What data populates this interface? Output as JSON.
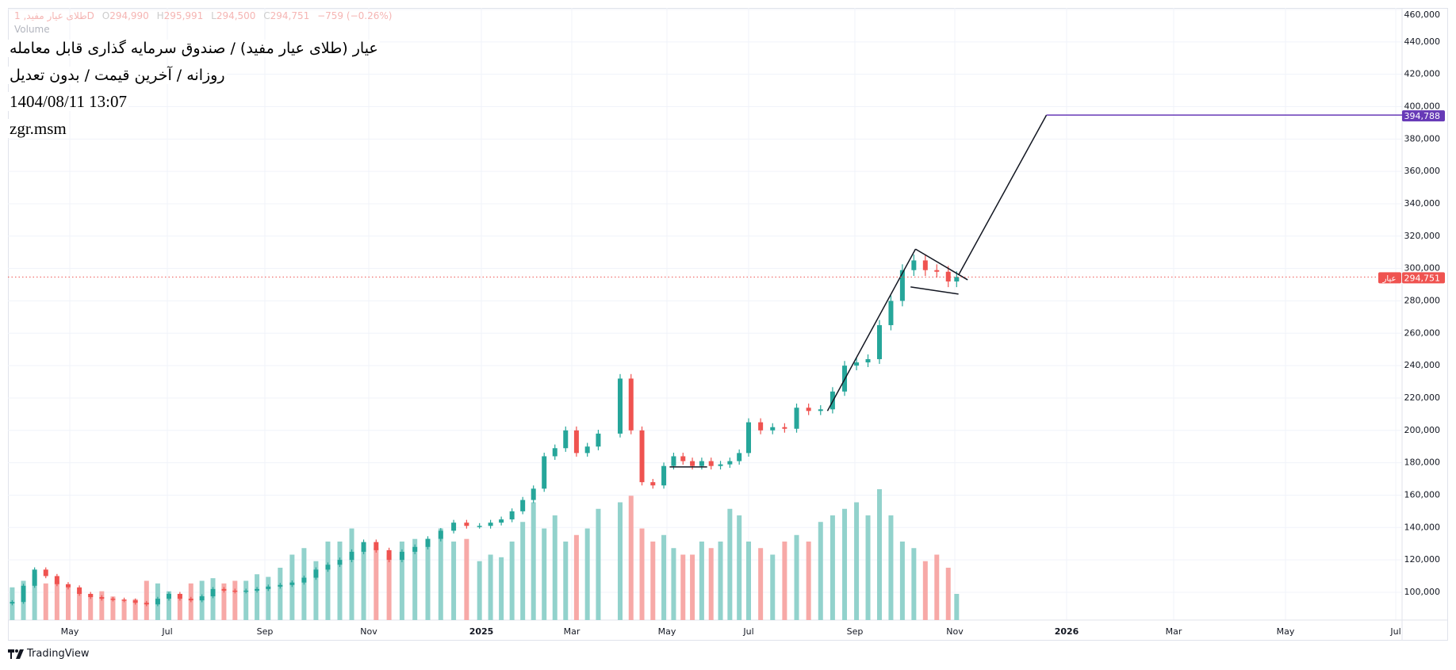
{
  "header": {
    "legend": {
      "symbol": "طلای عیار مفید, 1D",
      "open_label": "O",
      "open": "294,990",
      "high_label": "H",
      "high": "295,991",
      "low_label": "L",
      "low": "294,500",
      "close_label": "C",
      "close": "294,751",
      "change": "−759 (−0.26%)",
      "volume_label": "Volume"
    },
    "title": "عیار (طلای عیار مفید) / صندوق سرمایه گذاری قابل معامله",
    "subtitle": "روزانه / آخرین قیمت / بدون تعدیل",
    "datetime": "1404/08/11 13:07",
    "author": "zgr.msm"
  },
  "branding": {
    "logo_text": "TradingView"
  },
  "colors": {
    "up": "#26a69a",
    "down": "#ef5350",
    "up_volume": "#92d2cc",
    "down_volume": "#f7a9a7",
    "target": "#673ab7",
    "last_price": "#ef5350",
    "grid": "#f0f3fa"
  },
  "chart_data": {
    "type": "candlestick",
    "title": "",
    "grid": true,
    "y_axis": {
      "position": "right",
      "range": [
        86000,
        460000
      ],
      "ticks": [
        "460,000",
        "440,000",
        "420,000",
        "400,000",
        "380,000",
        "360,000",
        "340,000",
        "320,000",
        "300,000",
        "280,000",
        "260,000",
        "240,000",
        "220,000",
        "200,000",
        "180,000",
        "160,000",
        "140,000",
        "120,000",
        "100,000"
      ]
    },
    "x_axis": {
      "ticks": [
        {
          "label": "May",
          "date": "2024-05-01"
        },
        {
          "label": "Jul",
          "date": "2024-07-01"
        },
        {
          "label": "Sep",
          "date": "2024-09-01"
        },
        {
          "label": "Nov",
          "date": "2024-11-01"
        },
        {
          "label": "2025",
          "date": "2025-01-01"
        },
        {
          "label": "Mar",
          "date": "2025-03-01"
        },
        {
          "label": "May",
          "date": "2025-05-01"
        },
        {
          "label": "Jul",
          "date": "2025-07-01"
        },
        {
          "label": "Sep",
          "date": "2025-09-01"
        },
        {
          "label": "Nov",
          "date": "2025-11-01"
        },
        {
          "label": "2026",
          "date": "2026-01-01"
        },
        {
          "label": "Mar",
          "date": "2026-03-01"
        },
        {
          "label": "May",
          "date": "2026-05-01"
        },
        {
          "label": "Jul",
          "date": "2026-07-01"
        }
      ]
    },
    "last_price": {
      "symbol_tag": "عیار",
      "value": 294751,
      "label": "294,751"
    },
    "target": {
      "value": 394788,
      "label": "394,788"
    },
    "candles": [
      {
        "date": "2024-03-26",
        "close": 94000,
        "vol": 0.25
      },
      {
        "date": "2024-04-02",
        "close": 104000,
        "vol": 0.3
      },
      {
        "date": "2024-04-09",
        "close": 114000,
        "vol": 0.35
      },
      {
        "date": "2024-04-16",
        "close": 110000,
        "vol": 0.28
      },
      {
        "date": "2024-04-23",
        "close": 105000,
        "vol": 0.3
      },
      {
        "date": "2024-04-30",
        "close": 103000,
        "vol": 0.25
      },
      {
        "date": "2024-05-07",
        "close": 99000,
        "vol": 0.22
      },
      {
        "date": "2024-05-14",
        "close": 97000,
        "vol": 0.2
      },
      {
        "date": "2024-05-21",
        "close": 96000,
        "vol": 0.22
      },
      {
        "date": "2024-05-28",
        "close": 95500,
        "vol": 0.18
      },
      {
        "date": "2024-06-04",
        "close": 95000,
        "vol": 0.15
      },
      {
        "date": "2024-06-11",
        "close": 93500,
        "vol": 0.16
      },
      {
        "date": "2024-06-18",
        "close": 92500,
        "vol": 0.3
      },
      {
        "date": "2024-06-25",
        "close": 96000,
        "vol": 0.28
      },
      {
        "date": "2024-07-02",
        "close": 99000,
        "vol": 0.22
      },
      {
        "date": "2024-07-09",
        "close": 96000,
        "vol": 0.2
      },
      {
        "date": "2024-07-16",
        "close": 95000,
        "vol": 0.28
      },
      {
        "date": "2024-07-23",
        "close": 97500,
        "vol": 0.3
      },
      {
        "date": "2024-07-30",
        "close": 102000,
        "vol": 0.32
      },
      {
        "date": "2024-08-06",
        "close": 101000,
        "vol": 0.28
      },
      {
        "date": "2024-08-13",
        "close": 100500,
        "vol": 0.3
      },
      {
        "date": "2024-08-20",
        "close": 101000,
        "vol": 0.3
      },
      {
        "date": "2024-08-27",
        "close": 102000,
        "vol": 0.35
      },
      {
        "date": "2024-09-03",
        "close": 103500,
        "vol": 0.33
      },
      {
        "date": "2024-09-10",
        "close": 104500,
        "vol": 0.4
      },
      {
        "date": "2024-09-17",
        "close": 106000,
        "vol": 0.5
      },
      {
        "date": "2024-09-24",
        "close": 109000,
        "vol": 0.55
      },
      {
        "date": "2024-10-01",
        "close": 114000,
        "vol": 0.45
      },
      {
        "date": "2024-10-08",
        "close": 117000,
        "vol": 0.6
      },
      {
        "date": "2024-10-15",
        "close": 120000,
        "vol": 0.6
      },
      {
        "date": "2024-10-22",
        "close": 125000,
        "vol": 0.7
      },
      {
        "date": "2024-10-29",
        "close": 131000,
        "vol": 0.55
      },
      {
        "date": "2024-11-05",
        "close": 126000,
        "vol": 0.55
      },
      {
        "date": "2024-11-12",
        "close": 120000,
        "vol": 0.5
      },
      {
        "date": "2024-11-19",
        "close": 125000,
        "vol": 0.6
      },
      {
        "date": "2024-11-26",
        "close": 128000,
        "vol": 0.62
      },
      {
        "date": "2024-12-03",
        "close": 133000,
        "vol": 0.58
      },
      {
        "date": "2024-12-10",
        "close": 138000,
        "vol": 0.7
      },
      {
        "date": "2024-12-17",
        "close": 143000,
        "vol": 0.6
      },
      {
        "date": "2024-12-24",
        "close": 141000,
        "vol": 0.62
      },
      {
        "date": "2024-12-31",
        "close": 141000,
        "vol": 0.45
      },
      {
        "date": "2025-01-07",
        "close": 143000,
        "vol": 0.5
      },
      {
        "date": "2025-01-14",
        "close": 145000,
        "vol": 0.48
      },
      {
        "date": "2025-01-21",
        "close": 150000,
        "vol": 0.6
      },
      {
        "date": "2025-01-28",
        "close": 157000,
        "vol": 0.75
      },
      {
        "date": "2025-02-04",
        "close": 164000,
        "vol": 0.9
      },
      {
        "date": "2025-02-11",
        "close": 184000,
        "vol": 0.7
      },
      {
        "date": "2025-02-18",
        "close": 189000,
        "vol": 0.8
      },
      {
        "date": "2025-02-25",
        "close": 200000,
        "vol": 0.6
      },
      {
        "date": "2025-03-04",
        "close": 186000,
        "vol": 0.65
      },
      {
        "date": "2025-03-11",
        "close": 190000,
        "vol": 0.7
      },
      {
        "date": "2025-03-18",
        "close": 198000,
        "vol": 0.85
      },
      {
        "date": "2025-04-01",
        "close": 232000,
        "vol": 0.9
      },
      {
        "date": "2025-04-08",
        "close": 200000,
        "vol": 0.95
      },
      {
        "date": "2025-04-15",
        "close": 168000,
        "vol": 0.7
      },
      {
        "date": "2025-04-22",
        "close": 166000,
        "vol": 0.6
      },
      {
        "date": "2025-04-29",
        "close": 178000,
        "vol": 0.65
      },
      {
        "date": "2025-05-06",
        "close": 184000,
        "vol": 0.55
      },
      {
        "date": "2025-05-13",
        "close": 181000,
        "vol": 0.5
      },
      {
        "date": "2025-05-20",
        "close": 178000,
        "vol": 0.5
      },
      {
        "date": "2025-05-27",
        "close": 181000,
        "vol": 0.6
      },
      {
        "date": "2025-06-03",
        "close": 178000,
        "vol": 0.55
      },
      {
        "date": "2025-06-10",
        "close": 179000,
        "vol": 0.6
      },
      {
        "date": "2025-06-17",
        "close": 181000,
        "vol": 0.85
      },
      {
        "date": "2025-06-24",
        "close": 186000,
        "vol": 0.8
      },
      {
        "date": "2025-07-01",
        "close": 205000,
        "vol": 0.6
      },
      {
        "date": "2025-07-08",
        "close": 200000,
        "vol": 0.55
      },
      {
        "date": "2025-07-15",
        "close": 202000,
        "vol": 0.5
      },
      {
        "date": "2025-07-22",
        "close": 201000,
        "vol": 0.6
      },
      {
        "date": "2025-07-29",
        "close": 214000,
        "vol": 0.65
      },
      {
        "date": "2025-08-05",
        "close": 212000,
        "vol": 0.6
      },
      {
        "date": "2025-08-12",
        "close": 213000,
        "vol": 0.75
      },
      {
        "date": "2025-08-19",
        "close": 224000,
        "vol": 0.8
      },
      {
        "date": "2025-08-26",
        "close": 240000,
        "vol": 0.85
      },
      {
        "date": "2025-09-02",
        "close": 242000,
        "vol": 0.9
      },
      {
        "date": "2025-09-09",
        "close": 244000,
        "vol": 0.8
      },
      {
        "date": "2025-09-16",
        "close": 265000,
        "vol": 1.0
      },
      {
        "date": "2025-09-23",
        "close": 280000,
        "vol": 0.8
      },
      {
        "date": "2025-09-30",
        "close": 299000,
        "vol": 0.6
      },
      {
        "date": "2025-10-07",
        "close": 305000,
        "vol": 0.55
      },
      {
        "date": "2025-10-14",
        "close": 299000,
        "vol": 0.45
      },
      {
        "date": "2025-10-21",
        "close": 298000,
        "vol": 0.5
      },
      {
        "date": "2025-10-28",
        "close": 292000,
        "vol": 0.4
      },
      {
        "date": "2025-11-02",
        "close": 294751,
        "vol": 0.2
      }
    ],
    "drawings": [
      {
        "kind": "trend-line",
        "from": {
          "date": "2025-08-16",
          "price": 212000
        },
        "to": {
          "date": "2025-10-08",
          "price": 312000
        }
      },
      {
        "kind": "pennant-upper",
        "from": {
          "date": "2025-10-08",
          "price": 312000
        },
        "to": {
          "date": "2025-11-08",
          "price": 293000
        }
      },
      {
        "kind": "pennant-lower",
        "from": {
          "date": "2025-10-05",
          "price": 288600
        },
        "to": {
          "date": "2025-11-03",
          "price": 284200
        }
      },
      {
        "kind": "projection",
        "from": {
          "date": "2025-11-03",
          "price": 295900
        },
        "to": {
          "date": "2025-12-21",
          "price": 394788
        }
      },
      {
        "kind": "support",
        "from": {
          "date": "2025-05-03",
          "price": 177400
        },
        "to": {
          "date": "2025-05-31",
          "price": 177400
        }
      }
    ]
  }
}
